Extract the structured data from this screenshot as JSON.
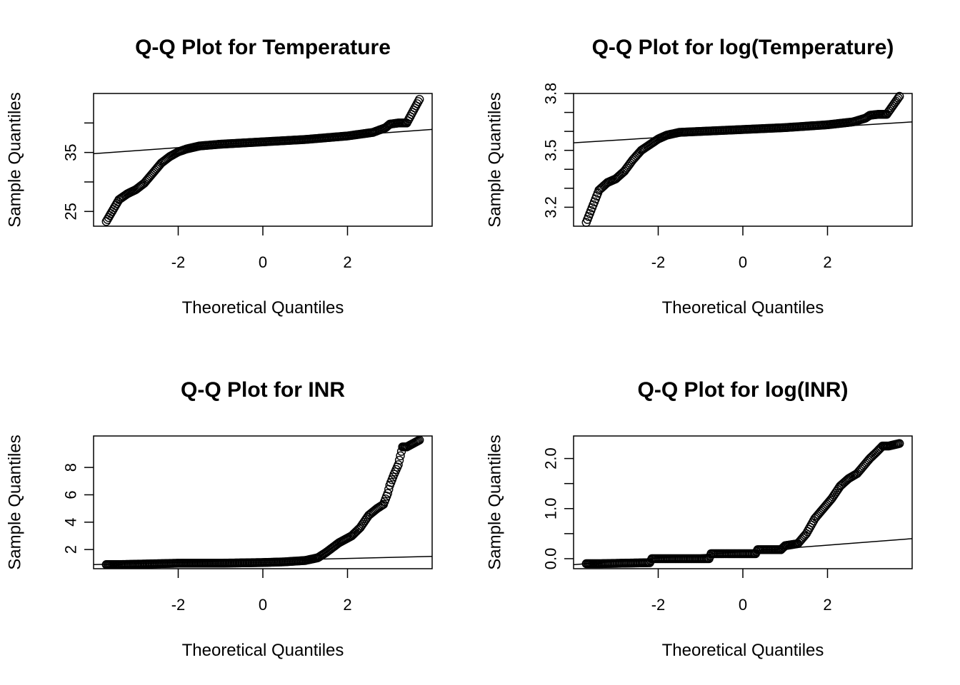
{
  "chart_data": [
    {
      "type": "scatter",
      "title": "Q-Q Plot for Temperature",
      "xlabel": "Theoretical Quantiles",
      "ylabel": "Sample Quantiles",
      "xlim": [
        -4,
        4
      ],
      "ylim": [
        22.5,
        45
      ],
      "xticks": [
        -2,
        0,
        2
      ],
      "xtick_labels": [
        "-2",
        "0",
        "2"
      ],
      "yticks": [
        25,
        30,
        35,
        40
      ],
      "ytick_labels": [
        "25",
        "",
        "35",
        ""
      ],
      "reference_line": [
        [
          -4,
          34.8
        ],
        [
          4,
          38.9
        ]
      ],
      "quantile_curve": [
        [
          -3.7,
          23.3
        ],
        [
          -3.4,
          27.0
        ],
        [
          -3.2,
          28.0
        ],
        [
          -3.0,
          28.7
        ],
        [
          -2.8,
          29.8
        ],
        [
          -2.6,
          31.5
        ],
        [
          -2.4,
          33.2
        ],
        [
          -2.2,
          34.3
        ],
        [
          -2.0,
          35.1
        ],
        [
          -1.8,
          35.6
        ],
        [
          -1.5,
          36.1
        ],
        [
          -1.0,
          36.4
        ],
        [
          0.0,
          36.8
        ],
        [
          1.0,
          37.2
        ],
        [
          2.0,
          37.8
        ],
        [
          2.6,
          38.4
        ],
        [
          2.9,
          39.2
        ],
        [
          3.0,
          39.8
        ],
        [
          3.2,
          40.0
        ],
        [
          3.4,
          40.0
        ],
        [
          3.7,
          44.0
        ]
      ],
      "grid": false,
      "legend": "none"
    },
    {
      "type": "scatter",
      "title": "Q-Q Plot for log(Temperature)",
      "xlabel": "Theoretical Quantiles",
      "ylabel": "Sample Quantiles",
      "xlim": [
        -4,
        4
      ],
      "ylim": [
        3.1,
        3.8
      ],
      "xticks": [
        -2,
        0,
        2
      ],
      "xtick_labels": [
        "-2",
        "0",
        "2"
      ],
      "yticks": [
        3.2,
        3.3,
        3.4,
        3.5,
        3.6,
        3.7,
        3.8
      ],
      "ytick_labels": [
        "3.2",
        "",
        "",
        "3.5",
        "",
        "",
        "3.8"
      ],
      "reference_line": [
        [
          -4,
          3.54
        ],
        [
          4,
          3.65
        ]
      ],
      "quantile_curve": [
        [
          -3.7,
          3.12
        ],
        [
          -3.4,
          3.29
        ],
        [
          -3.2,
          3.33
        ],
        [
          -3.0,
          3.35
        ],
        [
          -2.8,
          3.39
        ],
        [
          -2.6,
          3.45
        ],
        [
          -2.4,
          3.5
        ],
        [
          -2.2,
          3.53
        ],
        [
          -2.0,
          3.56
        ],
        [
          -1.8,
          3.58
        ],
        [
          -1.5,
          3.595
        ],
        [
          -1.0,
          3.6
        ],
        [
          0.0,
          3.61
        ],
        [
          1.0,
          3.62
        ],
        [
          2.0,
          3.635
        ],
        [
          2.6,
          3.65
        ],
        [
          2.9,
          3.67
        ],
        [
          3.0,
          3.685
        ],
        [
          3.2,
          3.69
        ],
        [
          3.4,
          3.69
        ],
        [
          3.7,
          3.785
        ]
      ],
      "grid": false,
      "legend": "none"
    },
    {
      "type": "scatter",
      "title": "Q-Q Plot for INR",
      "xlabel": "Theoretical Quantiles",
      "ylabel": "Sample Quantiles",
      "xlim": [
        -4,
        4
      ],
      "ylim": [
        0.6,
        10.3
      ],
      "xticks": [
        -2,
        0,
        2
      ],
      "xtick_labels": [
        "-2",
        "0",
        "2"
      ],
      "yticks": [
        2,
        4,
        6,
        8
      ],
      "ytick_labels": [
        "2",
        "4",
        "6",
        "8"
      ],
      "reference_line": [
        [
          -4,
          0.9
        ],
        [
          4,
          1.5
        ]
      ],
      "quantile_curve": [
        [
          -3.7,
          0.9
        ],
        [
          -3.4,
          0.9
        ],
        [
          -2.0,
          1.0
        ],
        [
          -1.0,
          1.0
        ],
        [
          0.0,
          1.05
        ],
        [
          0.5,
          1.1
        ],
        [
          1.0,
          1.2
        ],
        [
          1.3,
          1.4
        ],
        [
          1.5,
          1.8
        ],
        [
          1.8,
          2.5
        ],
        [
          2.1,
          3.0
        ],
        [
          2.3,
          3.6
        ],
        [
          2.5,
          4.5
        ],
        [
          2.7,
          5.0
        ],
        [
          2.85,
          5.3
        ],
        [
          2.95,
          6.1
        ],
        [
          3.0,
          6.7
        ],
        [
          3.1,
          7.5
        ],
        [
          3.2,
          8.2
        ],
        [
          3.3,
          9.5
        ],
        [
          3.4,
          9.5
        ],
        [
          3.7,
          10.0
        ]
      ],
      "grid": false,
      "legend": "none"
    },
    {
      "type": "scatter",
      "title": "Q-Q Plot for log(INR)",
      "xlabel": "Theoretical Quantiles",
      "ylabel": "Sample Quantiles",
      "xlim": [
        -4,
        4
      ],
      "ylim": [
        -0.2,
        2.45
      ],
      "xticks": [
        -2,
        0,
        2
      ],
      "xtick_labels": [
        "-2",
        "0",
        "2"
      ],
      "yticks": [
        0.0,
        0.5,
        1.0,
        1.5,
        2.0
      ],
      "ytick_labels": [
        "0.0",
        "",
        "1.0",
        "",
        "2.0"
      ],
      "reference_line": [
        [
          -4,
          -0.12
        ],
        [
          4,
          0.4
        ]
      ],
      "quantile_curve": [
        [
          -3.7,
          -0.1
        ],
        [
          -3.4,
          -0.1
        ],
        [
          -2.2,
          -0.08
        ],
        [
          -2.15,
          0.0
        ],
        [
          -0.8,
          0.0
        ],
        [
          -0.75,
          0.1
        ],
        [
          0.3,
          0.1
        ],
        [
          0.35,
          0.18
        ],
        [
          0.9,
          0.18
        ],
        [
          1.0,
          0.26
        ],
        [
          1.3,
          0.3
        ],
        [
          1.5,
          0.5
        ],
        [
          1.7,
          0.8
        ],
        [
          1.9,
          1.0
        ],
        [
          2.1,
          1.2
        ],
        [
          2.3,
          1.45
        ],
        [
          2.5,
          1.6
        ],
        [
          2.7,
          1.7
        ],
        [
          2.85,
          1.85
        ],
        [
          3.0,
          2.0
        ],
        [
          3.15,
          2.12
        ],
        [
          3.3,
          2.25
        ],
        [
          3.45,
          2.25
        ],
        [
          3.7,
          2.3
        ]
      ],
      "grid": false,
      "legend": "none"
    }
  ]
}
